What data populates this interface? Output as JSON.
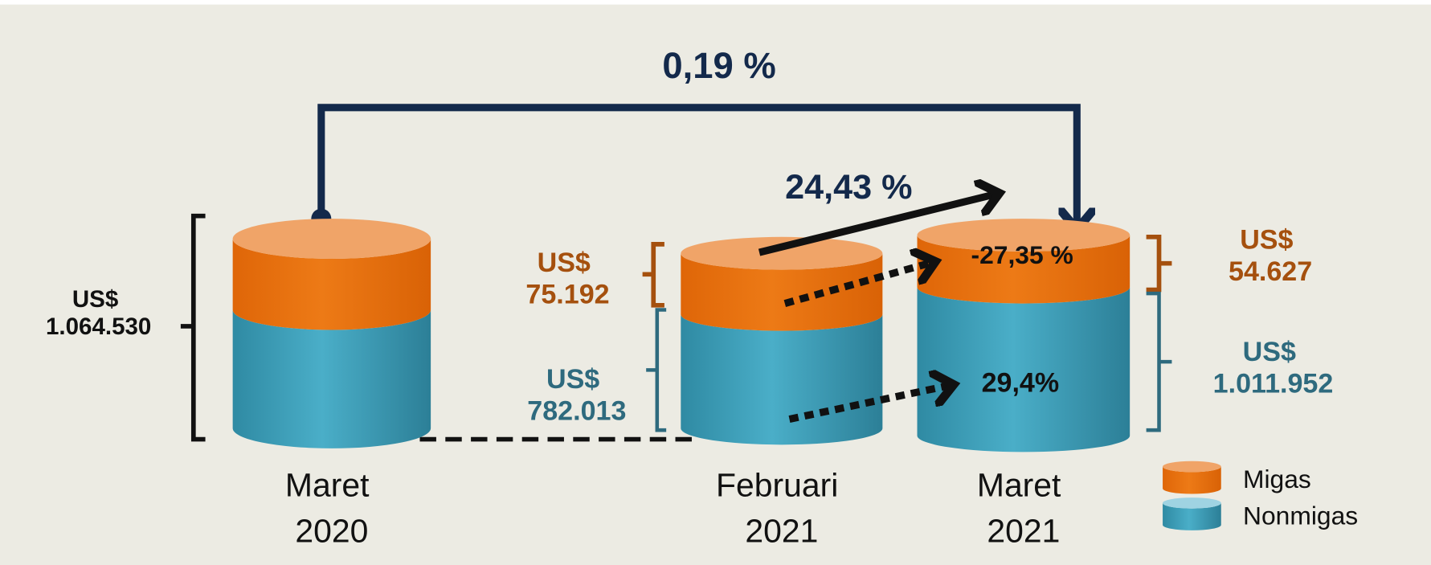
{
  "chart_data": {
    "type": "cylinder",
    "categories": [
      "Maret 2020",
      "Februari 2021",
      "Maret 2021"
    ],
    "total": {
      "value": 1064530,
      "label": "US$ 1.064.530"
    },
    "series": [
      {
        "name": "Migas",
        "color": "#e56d0a",
        "values": [
          null,
          75192,
          54627
        ],
        "value_labels": [
          null,
          "US$ 75.192",
          "US$ 54.627"
        ],
        "label_color": "#a5500e"
      },
      {
        "name": "Nonmigas",
        "color": "#3a9bb5",
        "values": [
          null,
          782013,
          1011952
        ],
        "value_labels": [
          null,
          "US$ 782.013",
          "US$ 1.011.952"
        ],
        "label_color": "#2e6a7e"
      }
    ],
    "changes": [
      {
        "value": 0.19,
        "label": "0,19 %"
      },
      {
        "value": 24.43,
        "label": "24,43 %"
      },
      {
        "value": -27.35,
        "label": "-27,35 %"
      },
      {
        "value": 29.4,
        "label": "29,4%"
      }
    ]
  }
}
